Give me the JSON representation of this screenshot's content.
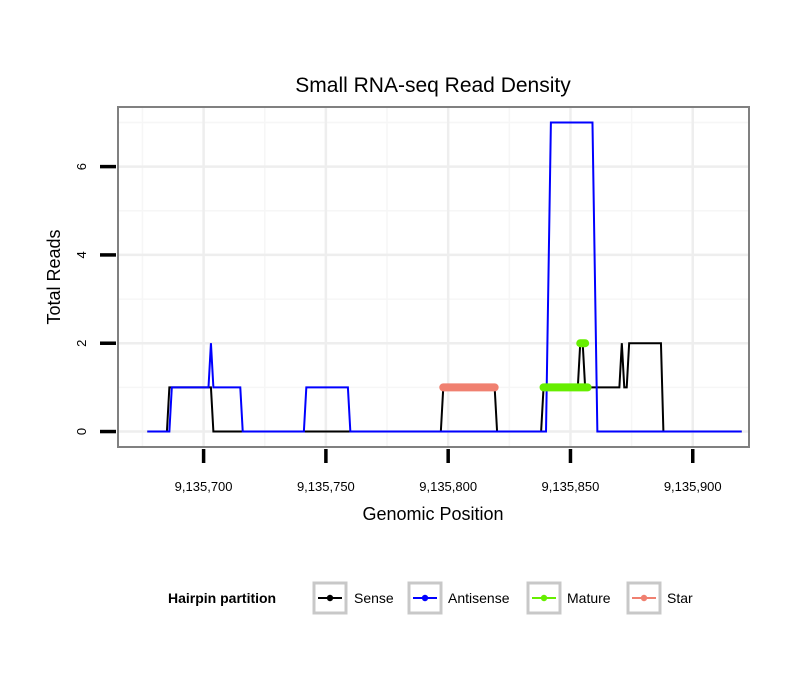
{
  "chart_data": {
    "type": "line",
    "title": "Small RNA-seq Read Density",
    "xlabel": "Genomic Position",
    "ylabel": "Total Reads",
    "xlim": [
      9135665,
      9135923
    ],
    "ylim": [
      -0.35,
      7.35
    ],
    "x_ticks": [
      9135700,
      9135750,
      9135800,
      9135850,
      9135900
    ],
    "x_tick_labels": [
      "9,135,700",
      "9,135,750",
      "9,135,800",
      "9,135,850",
      "9,135,900"
    ],
    "y_ticks": [
      0,
      2,
      4,
      6
    ],
    "y_tick_labels": [
      "0",
      "2",
      "4",
      "6"
    ],
    "grid": true,
    "legend": {
      "title": "Hairpin partition",
      "position": "bottom",
      "entries": [
        {
          "name": "Sense",
          "color": "#000000"
        },
        {
          "name": "Antisense",
          "color": "#0000FF"
        },
        {
          "name": "Mature",
          "color": "#66EE00"
        },
        {
          "name": "Star",
          "color": "#F08070"
        }
      ]
    },
    "series": [
      {
        "name": "Sense",
        "color": "#000000",
        "kind": "line",
        "x": [
          9135677,
          9135685,
          9135686,
          9135703,
          9135704,
          9135797,
          9135798,
          9135819,
          9135820,
          9135838,
          9135839,
          9135853,
          9135854,
          9135855,
          9135856,
          9135857,
          9135858,
          9135870,
          9135871,
          9135872,
          9135873,
          9135874,
          9135887,
          9135888,
          9135920
        ],
        "y": [
          0,
          0,
          1,
          1,
          0,
          0,
          1,
          1,
          0,
          0,
          1,
          1,
          2,
          2,
          1,
          1,
          1,
          1,
          2,
          1,
          1,
          2,
          2,
          0,
          0
        ]
      },
      {
        "name": "Antisense",
        "color": "#0000FF",
        "kind": "line",
        "x": [
          9135677,
          9135686,
          9135687,
          9135702,
          9135703,
          9135704,
          9135715,
          9135716,
          9135741,
          9135742,
          9135759,
          9135760,
          9135840,
          9135842,
          9135859,
          9135861,
          9135920
        ],
        "y": [
          0,
          0,
          1,
          1,
          2,
          1,
          1,
          0,
          0,
          1,
          1,
          0,
          0,
          7,
          7,
          0,
          0
        ]
      },
      {
        "name": "Mature",
        "color": "#66EE00",
        "kind": "segments",
        "segments": [
          {
            "x": [
              9135839,
              9135857
            ],
            "y": [
              1,
              1
            ]
          },
          {
            "x": [
              9135854,
              9135856
            ],
            "y": [
              2,
              2
            ]
          }
        ]
      },
      {
        "name": "Star",
        "color": "#F08070",
        "kind": "segments",
        "segments": [
          {
            "x": [
              9135798,
              9135819
            ],
            "y": [
              1,
              1
            ]
          }
        ]
      }
    ]
  }
}
